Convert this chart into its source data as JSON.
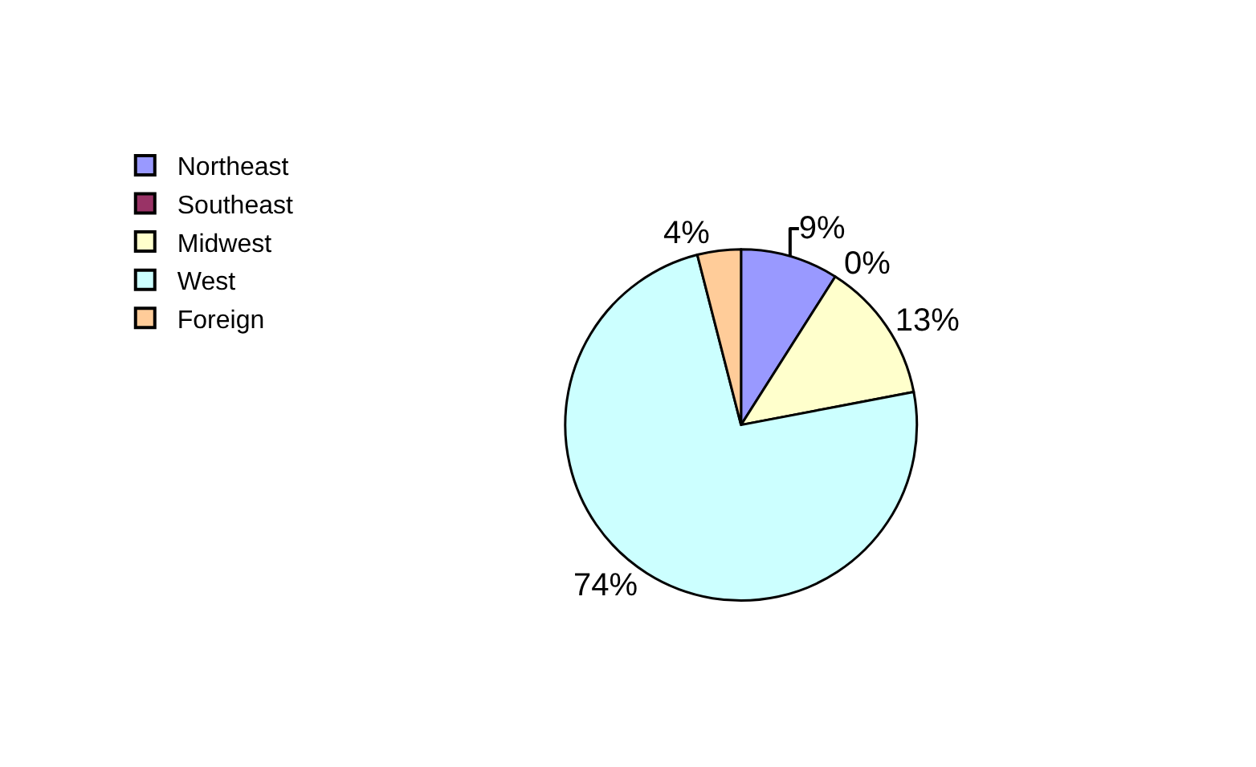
{
  "chart_data": {
    "type": "pie",
    "categories": [
      "Northeast",
      "Southeast",
      "Midwest",
      "West",
      "Foreign"
    ],
    "values": [
      9,
      0,
      13,
      74,
      4
    ],
    "colors": [
      "#9999ff",
      "#993366",
      "#ffffcc",
      "#ccffff",
      "#ffcc99"
    ],
    "value_labels": [
      "9%",
      "0%",
      "13%",
      "74%",
      "4%"
    ],
    "legend": "left"
  }
}
